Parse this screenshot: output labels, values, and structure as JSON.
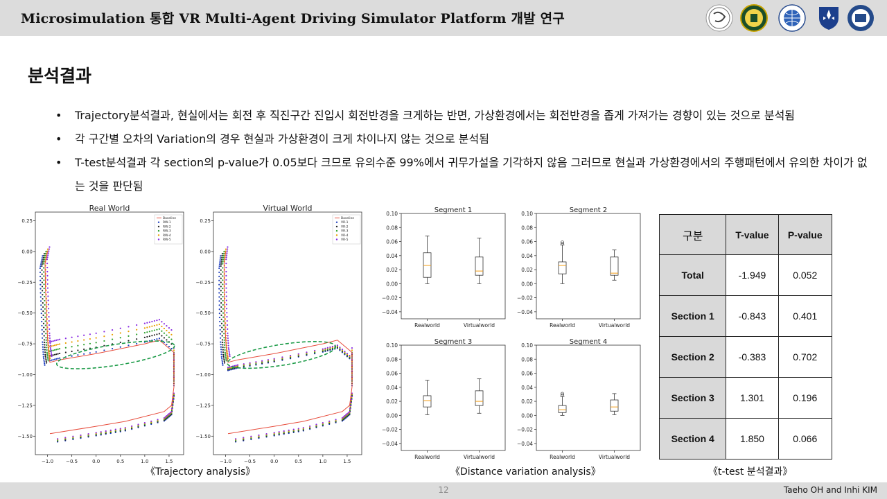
{
  "header": {
    "title": "Microsimulation 통합 VR Multi-Agent Driving Simulator Platform 개발 연구"
  },
  "section_title": "분석결과",
  "bullets": [
    {
      "text": "Trajectory분석결과, 현실에서는 회전 후 직진구간 진입시 회전반경을 크게하는 반면, 가상환경에서는 회전반경을 좁게 가져가는 경향이 있는 것으로 분석됨"
    },
    {
      "text": "각 구간별 오차의 Variation의  경우 현실과 가상환경이 크게 차이나지 않는 것으로 분석됨"
    },
    {
      "text": "T-test분석결과 각 section의 p-value가 0.05보다 크므로 유의수준 99%에서 귀무가설을 기각하지 않음 그러므로 현실과 가상환경에서의 주행패턴에서 유의한 차이가 없는 것을 판단됨"
    }
  ],
  "chart_data": [
    {
      "type": "line",
      "title": "Real World",
      "xlim": [
        -1.25,
        1.8
      ],
      "ylim": [
        -1.65,
        0.32
      ],
      "xticks": [
        "−1.0",
        "−0.5",
        "0.0",
        "0.5",
        "1.0",
        "1.5"
      ],
      "yticks": [
        "0.25",
        "0.00",
        "−0.25",
        "−0.50",
        "−0.75",
        "−1.00",
        "−1.25",
        "−1.50"
      ],
      "legend": [
        "Baseline",
        "RW-1",
        "RW-2",
        "RW-3",
        "RW-4",
        "RW-5"
      ],
      "series_colors": [
        "#e74c3c",
        "#1f3fbf",
        "#222222",
        "#2ca02c",
        "#e8a000",
        "#8a2be2"
      ],
      "baseline_x": [
        -1.0,
        -1.05,
        -1.04,
        -1.02,
        -1.0,
        -0.98,
        -0.95,
        -0.75,
        0.0,
        1.0,
        1.3,
        1.6,
        1.6,
        1.55,
        1.4,
        0.6,
        0.0,
        -0.95
      ],
      "baseline_y": [
        0.0,
        -0.1,
        -0.3,
        -0.5,
        -0.7,
        -0.82,
        -0.9,
        -0.88,
        -0.83,
        -0.75,
        -0.72,
        -0.82,
        -1.1,
        -1.25,
        -1.3,
        -1.38,
        -1.42,
        -1.48
      ]
    },
    {
      "type": "line",
      "title": "Virtual World",
      "xlim": [
        -1.25,
        1.8
      ],
      "ylim": [
        -1.65,
        0.32
      ],
      "xticks": [
        "−1.0",
        "−0.5",
        "0.0",
        "0.5",
        "1.0",
        "1.5"
      ],
      "yticks": [
        "0.25",
        "0.00",
        "−0.25",
        "−0.50",
        "−0.75",
        "−1.00",
        "−1.25",
        "−1.50"
      ],
      "legend": [
        "Baseline",
        "VR-1",
        "VR-2",
        "VR-3",
        "VR-4",
        "VR-5"
      ],
      "series_colors": [
        "#e74c3c",
        "#1f3fbf",
        "#222222",
        "#2ca02c",
        "#e8a000",
        "#8a2be2"
      ],
      "baseline_x": [
        -1.0,
        -1.03,
        -1.03,
        -1.02,
        -1.0,
        -0.98,
        -0.95,
        -0.75,
        0.0,
        1.0,
        1.3,
        1.6,
        1.6,
        1.55,
        1.4,
        0.6,
        0.0,
        -0.95
      ],
      "baseline_y": [
        0.0,
        -0.1,
        -0.3,
        -0.5,
        -0.7,
        -0.82,
        -0.9,
        -0.88,
        -0.83,
        -0.75,
        -0.72,
        -0.82,
        -1.1,
        -1.25,
        -1.3,
        -1.38,
        -1.42,
        -1.48
      ]
    },
    {
      "type": "box",
      "title": "Segment 1",
      "categories": [
        "Realworld",
        "Virtualworld"
      ],
      "ylim": [
        -0.05,
        0.1
      ],
      "yticks": [
        "0.10",
        "0.08",
        "0.06",
        "0.04",
        "0.02",
        "0.00",
        "−0.02",
        "−0.04"
      ],
      "boxes": [
        {
          "min": 0.0,
          "q1": 0.009,
          "median": 0.026,
          "q3": 0.044,
          "max": 0.068,
          "outliers": []
        },
        {
          "min": 0.0,
          "q1": 0.012,
          "median": 0.018,
          "q3": 0.038,
          "max": 0.065,
          "outliers": []
        }
      ]
    },
    {
      "type": "box",
      "title": "Segment 2",
      "categories": [
        "Realworld",
        "Virtualworld"
      ],
      "ylim": [
        -0.05,
        0.1
      ],
      "yticks": [
        "0.10",
        "0.08",
        "0.06",
        "0.04",
        "0.02",
        "0.00",
        "−0.02",
        "−0.04"
      ],
      "boxes": [
        {
          "min": 0.0,
          "q1": 0.014,
          "median": 0.026,
          "q3": 0.031,
          "max": 0.055,
          "outliers": [
            0.057,
            0.059
          ]
        },
        {
          "min": 0.005,
          "q1": 0.012,
          "median": 0.015,
          "q3": 0.038,
          "max": 0.048,
          "outliers": []
        }
      ]
    },
    {
      "type": "box",
      "title": "Segment 3",
      "categories": [
        "Realworld",
        "Virtualworld"
      ],
      "ylim": [
        -0.05,
        0.1
      ],
      "yticks": [
        "0.10",
        "0.08",
        "0.06",
        "0.04",
        "0.02",
        "0.00",
        "−0.02",
        "−0.04"
      ],
      "boxes": [
        {
          "min": 0.001,
          "q1": 0.012,
          "median": 0.021,
          "q3": 0.028,
          "max": 0.05,
          "outliers": []
        },
        {
          "min": 0.003,
          "q1": 0.014,
          "median": 0.02,
          "q3": 0.035,
          "max": 0.052,
          "outliers": []
        }
      ]
    },
    {
      "type": "box",
      "title": "Segment 4",
      "categories": [
        "Realworld",
        "Virtualworld"
      ],
      "ylim": [
        -0.05,
        0.1
      ],
      "yticks": [
        "0.10",
        "0.08",
        "0.06",
        "0.04",
        "0.02",
        "0.00",
        "−0.02",
        "−0.04"
      ],
      "boxes": [
        {
          "min": 0.0,
          "q1": 0.004,
          "median": 0.008,
          "q3": 0.014,
          "max": 0.027,
          "outliers": [
            0.029,
            0.031
          ]
        },
        {
          "min": 0.001,
          "q1": 0.006,
          "median": 0.012,
          "q3": 0.022,
          "max": 0.031,
          "outliers": []
        }
      ]
    }
  ],
  "captions": {
    "trajectory": "《Trajectory analysis》",
    "distance": "《Distance variation analysis》",
    "ttest": "《t-test 분석결과》"
  },
  "ttest_table": {
    "headers": [
      "구분",
      "T-value",
      "P-value"
    ],
    "rows": [
      {
        "label": "Total",
        "t": "-1.949",
        "p": "0.052"
      },
      {
        "label": "Section 1",
        "t": "-0.843",
        "p": "0.401"
      },
      {
        "label": "Section 2",
        "t": "-0.383",
        "p": "0.702"
      },
      {
        "label": "Section 3",
        "t": "1.301",
        "p": "0.196"
      },
      {
        "label": "Section 4",
        "t": "1.850",
        "p": "0.066"
      }
    ]
  },
  "footer": {
    "page": "12",
    "author": "Taeho OH and Inhi KIM"
  },
  "logos": [
    "university-seal-logo",
    "university-seal-logo",
    "globe-logo",
    "shield-logo",
    "institute-logo"
  ]
}
